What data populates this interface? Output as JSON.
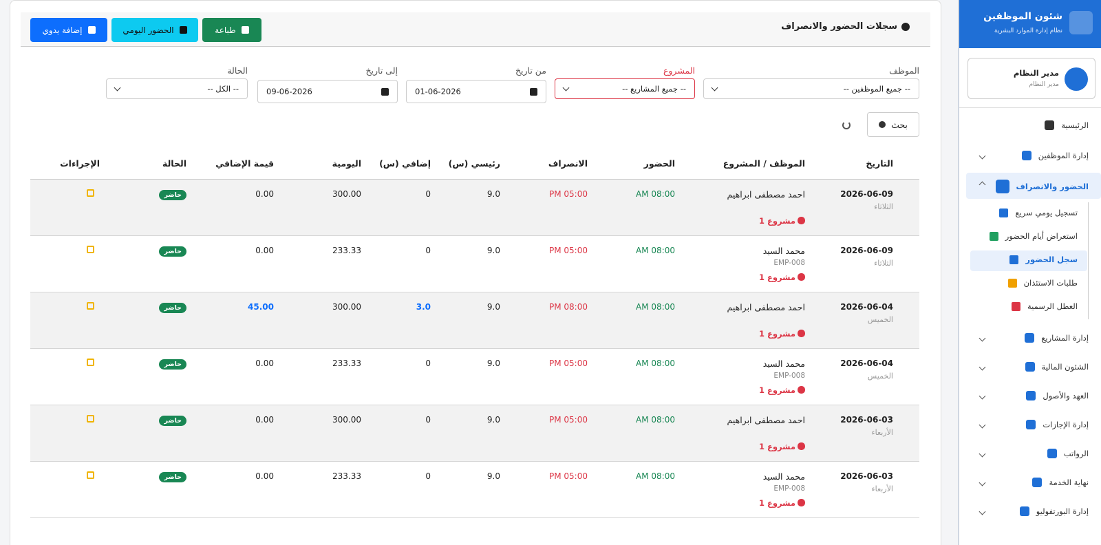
{
  "sidebar": {
    "app_title": "شئون الموظفين",
    "app_subtitle": "نظام إدارة الموارد البشرية",
    "user_name": "مدير النظام",
    "user_role": "مدير النظام",
    "menu": [
      {
        "label": "الرئيسية"
      },
      {
        "label": "إدارة الموظفين"
      },
      {
        "label": "الحضور والانصراف",
        "expanded": true,
        "sub": [
          {
            "label": "تسجيل يومي سريع"
          },
          {
            "label": "استعراض أيام الحضور"
          },
          {
            "label": "سجل الحضور",
            "current": true
          },
          {
            "label": "طلبات الاستئذان"
          },
          {
            "label": "العطل الرسمية"
          }
        ]
      },
      {
        "label": "إدارة المشاريع"
      },
      {
        "label": "الشئون المالية"
      },
      {
        "label": "العهد والأصول"
      },
      {
        "label": "إدارة الإجازات"
      },
      {
        "label": "الرواتب"
      },
      {
        "label": "نهاية الخدمة"
      },
      {
        "label": "إدارة البورتفوليو"
      }
    ]
  },
  "header": {
    "title": "سجلات الحضور والانصراف",
    "buttons": [
      "طباعة",
      "الحضور اليومي",
      "إضافة يدوي"
    ]
  },
  "filters": [
    {
      "label": "الموظف",
      "value": "-- جميع الموظفين --"
    },
    {
      "label": "المشروع",
      "value": "-- جميع المشاريع --"
    },
    {
      "label": "من تاريخ",
      "value": "01-06-2026"
    },
    {
      "label": "إلى تاريخ",
      "value": "09-06-2026"
    },
    {
      "label": "الحالة",
      "value": "-- الكل --"
    }
  ],
  "search": "بحث",
  "table": {
    "headers": [
      "التاريخ",
      "الموظف / المشروع",
      "الحضور",
      "الانصراف",
      "رئيسي (س)",
      "إضافي (س)",
      "اليومية",
      "قيمة الإضافي",
      "الحالة",
      "الإجراءات"
    ],
    "rows": [
      {
        "date": "2026-06-09",
        "weekday": "الثلاثاء",
        "employee": "احمد مصطفى ابراهيم",
        "project": "مشروع 1",
        "in": "08:00 AM",
        "out": "05:00 PM",
        "main": "9.0",
        "overtime": "0",
        "daily": "300.00",
        "overtime_value": "0.00",
        "status": "حاضر"
      },
      {
        "date": "2026-06-09",
        "weekday": "الثلاثاء",
        "employee": "محمد السيد",
        "code": "EMP-008",
        "project": "مشروع 1",
        "in": "08:00 AM",
        "out": "05:00 PM",
        "main": "9.0",
        "overtime": "0",
        "daily": "233.33",
        "overtime_value": "0.00",
        "status": "حاضر"
      },
      {
        "date": "2026-06-04",
        "weekday": "الخميس",
        "employee": "احمد مصطفى ابراهيم",
        "project": "مشروع 1",
        "in": "08:00 AM",
        "out": "08:00 PM",
        "main": "9.0",
        "overtime": "3.0",
        "daily": "300.00",
        "overtime_value": "45.00",
        "status": "حاضر"
      },
      {
        "date": "2026-06-04",
        "weekday": "الخميس",
        "employee": "محمد السيد",
        "code": "EMP-008",
        "project": "مشروع 1",
        "in": "08:00 AM",
        "out": "05:00 PM",
        "main": "9.0",
        "overtime": "0",
        "daily": "233.33",
        "overtime_value": "0.00",
        "status": "حاضر"
      },
      {
        "date": "2026-06-03",
        "weekday": "الأربعاء",
        "employee": "احمد مصطفى ابراهيم",
        "project": "مشروع 1",
        "in": "08:00 AM",
        "out": "05:00 PM",
        "main": "9.0",
        "overtime": "0",
        "daily": "300.00",
        "overtime_value": "0.00",
        "status": "حاضر"
      },
      {
        "date": "2026-06-03",
        "weekday": "الأربعاء",
        "employee": "محمد السيد",
        "code": "EMP-008",
        "project": "مشروع 1",
        "in": "08:00 AM",
        "out": "05:00 PM",
        "main": "9.0",
        "overtime": "0",
        "daily": "233.33",
        "overtime_value": "0.00",
        "status": "حاضر"
      }
    ]
  }
}
